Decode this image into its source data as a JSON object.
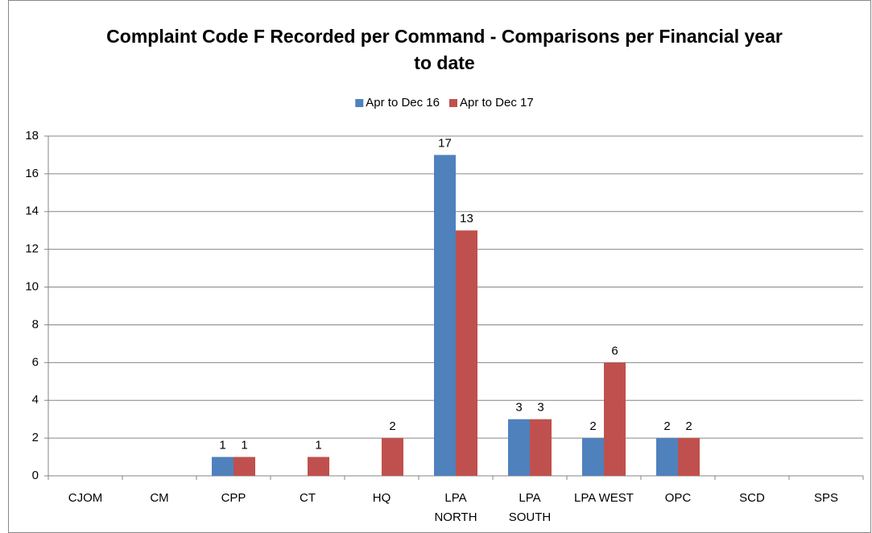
{
  "chart_data": {
    "type": "bar",
    "title": "Complaint Code F Recorded per Command - Comparisons per Financial year to date",
    "categories": [
      "CJOM",
      "CM",
      "CPP",
      "CT",
      "HQ",
      "LPA NORTH",
      "LPA SOUTH",
      "LPA WEST",
      "OPC",
      "SCD",
      "SPS"
    ],
    "series": [
      {
        "name": "Apr to Dec 16",
        "color": "#4f81bd",
        "values": [
          null,
          null,
          1,
          null,
          null,
          17,
          3,
          2,
          2,
          null,
          null
        ]
      },
      {
        "name": "Apr to Dec 17",
        "color": "#c0504d",
        "values": [
          null,
          null,
          1,
          1,
          2,
          13,
          3,
          6,
          2,
          null,
          null
        ]
      }
    ],
    "ylim": [
      0,
      18
    ],
    "yticks": [
      0,
      2,
      4,
      6,
      8,
      10,
      12,
      14,
      16,
      18
    ],
    "grid": true,
    "legend": "top"
  }
}
